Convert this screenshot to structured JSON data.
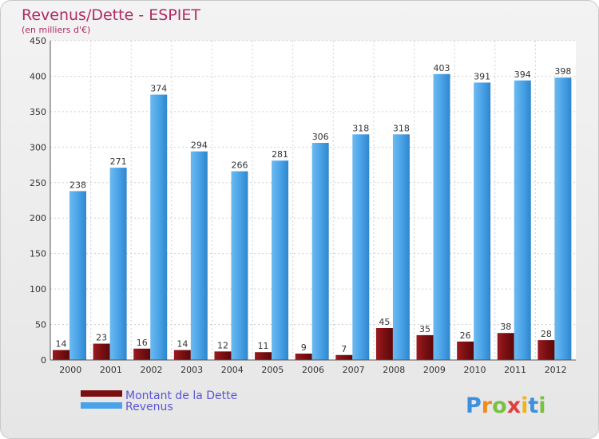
{
  "colors": {
    "debt": "#7a0f12",
    "revenue": "#4aa3e8",
    "title": "#b02a63",
    "legend_text": "#5a55d6",
    "grid": "#d0d0d0"
  },
  "logo": {
    "letters": [
      "P",
      "r",
      "o",
      "x",
      "i",
      "t",
      "i"
    ],
    "colors": [
      "#3d8fe0",
      "#f08a1c",
      "#7ac142",
      "#e33e3e",
      "#f2b31a",
      "#3d8fe0",
      "#7ac142"
    ]
  },
  "chart_data": {
    "type": "bar",
    "title": "Revenus/Dette - ESPIET",
    "subtitle": "(en milliers d'€)",
    "xlabel": "",
    "ylabel": "",
    "ylim": [
      0,
      450
    ],
    "yticks": [
      0,
      50,
      100,
      150,
      200,
      250,
      300,
      350,
      400,
      450
    ],
    "grid": true,
    "legend_position": "bottom-left",
    "categories": [
      "2000",
      "2001",
      "2002",
      "2003",
      "2004",
      "2005",
      "2006",
      "2007",
      "2008",
      "2009",
      "2010",
      "2011",
      "2012"
    ],
    "series": [
      {
        "name": "Montant de la Dette",
        "values": [
          14,
          23,
          16,
          14,
          12,
          11,
          9,
          7,
          45,
          35,
          26,
          38,
          28
        ]
      },
      {
        "name": "Revenus",
        "values": [
          238,
          271,
          374,
          294,
          266,
          281,
          306,
          318,
          318,
          403,
          391,
          394,
          398
        ]
      }
    ]
  }
}
